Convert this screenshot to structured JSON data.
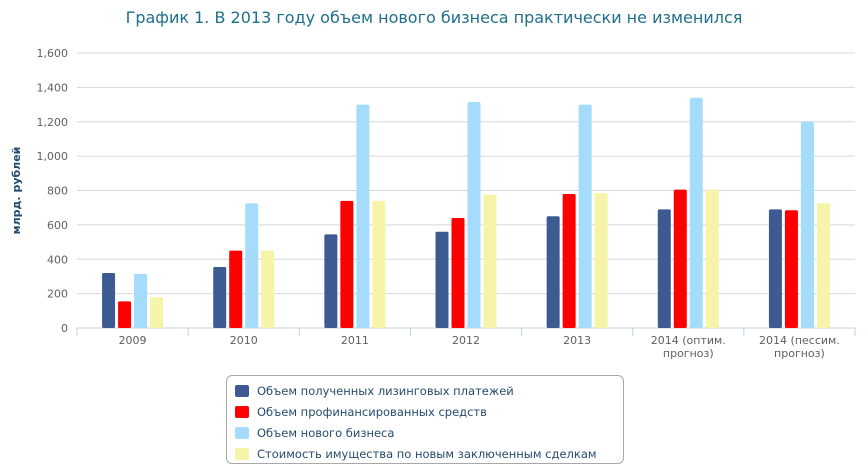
{
  "title": "График 1. В 2013 году объем нового бизнеса практически не изменился",
  "chart_data": {
    "type": "bar",
    "title": "График 1. В 2013 году объем нового бизнеса практически не изменился",
    "xlabel": "",
    "ylabel": "млрд. рублей",
    "ylim": [
      0,
      1600
    ],
    "yticks": [
      0,
      200,
      400,
      600,
      800,
      1000,
      1200,
      1400,
      1600
    ],
    "ytick_labels": [
      "0",
      "200",
      "400",
      "600",
      "800",
      "1,000",
      "1,200",
      "1,400",
      "1,600"
    ],
    "grid": true,
    "legend_position": "bottom",
    "categories": [
      [
        "2009"
      ],
      [
        "2010"
      ],
      [
        "2011"
      ],
      [
        "2012"
      ],
      [
        "2013"
      ],
      [
        "2014 (оптим.",
        "прогноз)"
      ],
      [
        "2014 (пессим.",
        "прогноз)"
      ]
    ],
    "series": [
      {
        "name": "Объем полученных лизинговых платежей",
        "color": "#3d5b92",
        "values": [
          320,
          355,
          545,
          560,
          650,
          690,
          690
        ]
      },
      {
        "name": "Объем профинансированных средств",
        "color": "#ff0000",
        "values": [
          155,
          450,
          740,
          640,
          780,
          805,
          685
        ]
      },
      {
        "name": "Объем нового бизнеса",
        "color": "#a6dcfb",
        "values": [
          315,
          725,
          1300,
          1315,
          1300,
          1340,
          1200
        ]
      },
      {
        "name": "Стоимость имущества по новым заключенным сделкам",
        "color": "#f6f4a8",
        "values": [
          180,
          450,
          740,
          775,
          785,
          805,
          725
        ]
      }
    ]
  }
}
